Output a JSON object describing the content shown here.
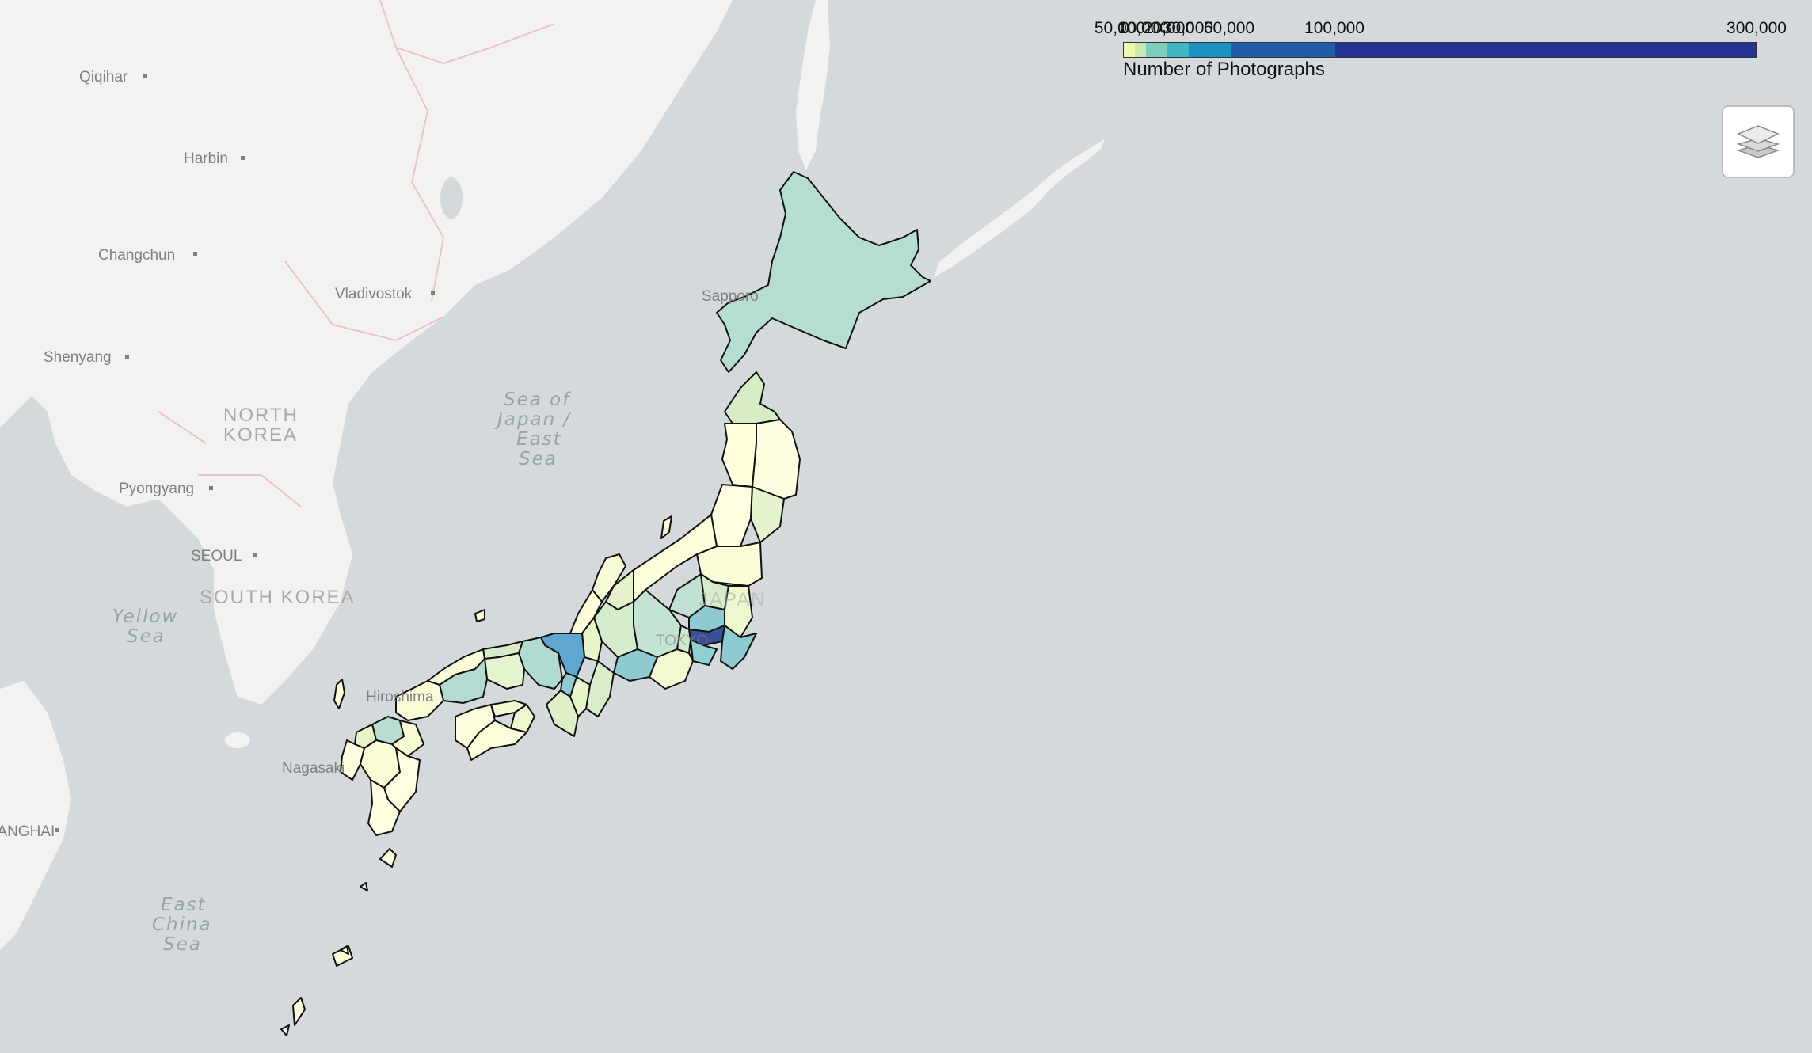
{
  "legend": {
    "title": "Number of Photographs",
    "ticks": [
      "50,000",
      "0",
      "10,000",
      "20,000",
      "30,000",
      "50,000",
      "100,000",
      "300,000"
    ],
    "colors": [
      "#ffffd9",
      "#edf8b1",
      "#c7e9b4",
      "#7fcdbb",
      "#41b6c4",
      "#1d91c0",
      "#225ea8",
      "#253494"
    ]
  },
  "layer_control": {
    "icon": "layers-icon"
  },
  "labels": {
    "cities": [
      "Qiqihar",
      "Harbin",
      "Changchun",
      "Vladivostok",
      "Shenyang",
      "Pyongyang",
      "SEOUL",
      "Sapporo",
      "Hiroshima",
      "Nagasaki",
      "SHANGHAI",
      "TOKYO"
    ],
    "countries": [
      "NORTH KOREA",
      "SOUTH KOREA",
      "JAPAN"
    ],
    "seas": {
      "japan_sea": [
        "Sea of",
        "Japan /",
        "East",
        "Sea"
      ],
      "yellow_sea": [
        "Yellow",
        "Sea"
      ],
      "east_china_sea": [
        "East",
        "China",
        "Sea"
      ]
    }
  },
  "choropleth_colors": {
    "lowest": "#ffffe0",
    "low": "#e8f5c8",
    "mid_low": "#c6e6cf",
    "mid": "#b2dccf",
    "mid_high": "#8fcad0",
    "high": "#5fa7d0",
    "highest": "#3a4f9b"
  }
}
